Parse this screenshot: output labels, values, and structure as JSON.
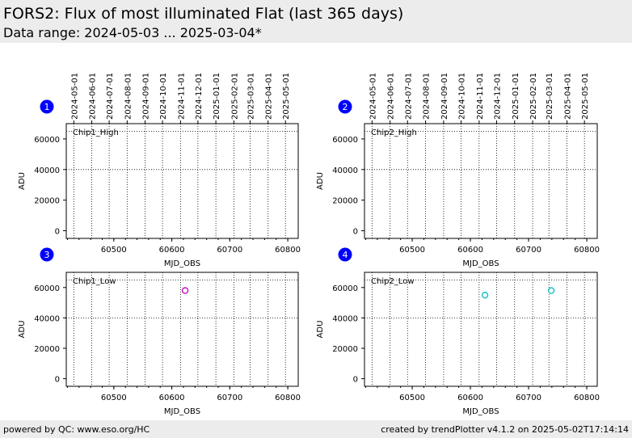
{
  "header": {
    "title": "FORS2: Flux of most illuminated Flat (last 365 days)",
    "subtitle": "Data range: 2024-05-03 ... 2025-03-04*"
  },
  "footer": {
    "left": "powered by QC: www.eso.org/HC",
    "right": "created by trendPlotter v4.1.2 on 2025-05-02T17:14:14"
  },
  "colors": {
    "header_bg": "#ececec",
    "badge": "#0000ff",
    "chip1_low_marker": "#bf00bf",
    "chip2_low_marker": "#00bfbf"
  },
  "chart_data": [
    {
      "type": "scatter",
      "panel_number": "1",
      "label": "Chip1_High",
      "xlabel": "MJD_OBS",
      "ylabel": "ADU",
      "xlim": [
        60418,
        60818
      ],
      "ylim": [
        -5000,
        70000
      ],
      "x_ticks": [
        60500,
        60600,
        60700,
        60800
      ],
      "y_ticks": [
        0,
        20000,
        40000,
        60000
      ],
      "reference_line_y": 65000,
      "top_date_ticks": [
        "2024-05-01",
        "2024-06-01",
        "2024-07-01",
        "2024-08-01",
        "2024-09-01",
        "2024-10-01",
        "2024-11-01",
        "2024-12-01",
        "2025-01-01",
        "2025-02-01",
        "2025-03-01",
        "2025-04-01",
        "2025-05-01"
      ],
      "top_date_mjd": [
        60431,
        60462,
        60492,
        60523,
        60554,
        60584,
        60615,
        60645,
        60676,
        60707,
        60735,
        60766,
        60796
      ],
      "marker_color": "#bf00bf",
      "points": []
    },
    {
      "type": "scatter",
      "panel_number": "2",
      "label": "Chip2_High",
      "xlabel": "MJD_OBS",
      "ylabel": "ADU",
      "xlim": [
        60418,
        60818
      ],
      "ylim": [
        -5000,
        70000
      ],
      "x_ticks": [
        60500,
        60600,
        60700,
        60800
      ],
      "y_ticks": [
        0,
        20000,
        40000,
        60000
      ],
      "reference_line_y": 65000,
      "top_date_ticks": [
        "2024-05-01",
        "2024-06-01",
        "2024-07-01",
        "2024-08-01",
        "2024-09-01",
        "2024-10-01",
        "2024-11-01",
        "2024-12-01",
        "2025-01-01",
        "2025-02-01",
        "2025-03-01",
        "2025-04-01",
        "2025-05-01"
      ],
      "top_date_mjd": [
        60431,
        60462,
        60492,
        60523,
        60554,
        60584,
        60615,
        60645,
        60676,
        60707,
        60735,
        60766,
        60796
      ],
      "marker_color": "#00bfbf",
      "points": []
    },
    {
      "type": "scatter",
      "panel_number": "3",
      "label": "Chip1_Low",
      "xlabel": "MJD_OBS",
      "ylabel": "ADU",
      "xlim": [
        60418,
        60818
      ],
      "ylim": [
        -5000,
        70000
      ],
      "x_ticks": [
        60500,
        60600,
        60700,
        60800
      ],
      "y_ticks": [
        0,
        20000,
        40000,
        60000
      ],
      "reference_line_y": 65000,
      "marker_color": "#bf00bf",
      "points": [
        {
          "x": 60623,
          "y": 58000
        }
      ]
    },
    {
      "type": "scatter",
      "panel_number": "4",
      "label": "Chip2_Low",
      "xlabel": "MJD_OBS",
      "ylabel": "ADU",
      "xlim": [
        60418,
        60818
      ],
      "ylim": [
        -5000,
        70000
      ],
      "x_ticks": [
        60500,
        60600,
        60700,
        60800
      ],
      "y_ticks": [
        0,
        20000,
        40000,
        60000
      ],
      "reference_line_y": 65000,
      "marker_color": "#00bfbf",
      "points": [
        {
          "x": 60625,
          "y": 55000
        },
        {
          "x": 60739,
          "y": 58000
        }
      ]
    }
  ]
}
